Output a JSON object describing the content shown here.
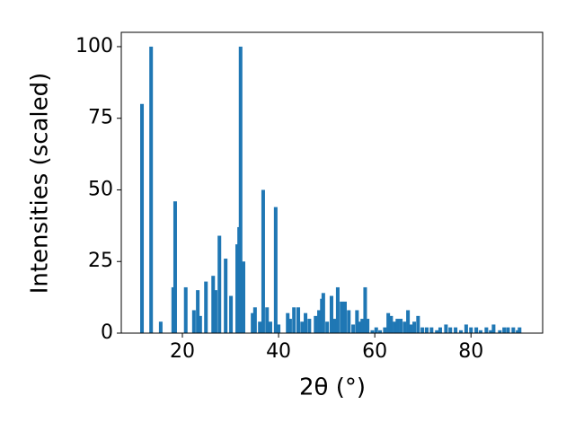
{
  "chart_data": {
    "type": "bar",
    "xlabel": "2θ (°)",
    "ylabel": "Intensities (scaled)",
    "x": [
      11.6,
      13.5,
      15.5,
      18.1,
      18.5,
      20.7,
      22.4,
      23.2,
      23.7,
      24.9,
      26.4,
      26.9,
      27.7,
      29.0,
      30.1,
      31.4,
      31.8,
      32.1,
      32.7,
      34.6,
      35.1,
      36.1,
      36.8,
      37.6,
      38.3,
      39.4,
      40.0,
      41.9,
      42.4,
      43.2,
      44.1,
      44.9,
      45.6,
      46.4,
      47.7,
      48.4,
      49.0,
      49.3,
      50.1,
      51.0,
      51.6,
      52.3,
      53.1,
      53.8,
      54.6,
      55.5,
      56.3,
      56.8,
      57.4,
      58.0,
      58.5,
      59.5,
      60.3,
      61.1,
      62.1,
      62.8,
      63.4,
      64.1,
      64.7,
      65.4,
      66.2,
      66.9,
      67.5,
      68.2,
      69.0,
      69.9,
      70.8,
      71.8,
      72.9,
      73.6,
      74.8,
      75.7,
      76.8,
      77.9,
      79.0,
      80.0,
      81.1,
      82.0,
      83.2,
      84.1,
      84.7,
      86.0,
      86.9,
      87.7,
      88.8,
      89.7,
      90.1
    ],
    "values": [
      80,
      100,
      4,
      16,
      46,
      16,
      8,
      15,
      6,
      18,
      20,
      15,
      34,
      26,
      13,
      31,
      37,
      100,
      25,
      7,
      9,
      4,
      50,
      9,
      4,
      44,
      3,
      7,
      5,
      9,
      9,
      4,
      7,
      5,
      6,
      8,
      12,
      14,
      4,
      13,
      5,
      16,
      11,
      11,
      8,
      3,
      8,
      4,
      5,
      16,
      5,
      1,
      2,
      1,
      2,
      7,
      6,
      4,
      5,
      5,
      4,
      8,
      3,
      4,
      6,
      2,
      2,
      2,
      1,
      2,
      3,
      2,
      2,
      1,
      3,
      2,
      2,
      1,
      2,
      1,
      3,
      1,
      2,
      2,
      2,
      1,
      2
    ],
    "color": "#1f77b4",
    "xlim": [
      7.3,
      94.9
    ],
    "xticks": [
      20,
      40,
      60,
      80
    ],
    "ylim": [
      0,
      105
    ],
    "yticks": [
      0,
      25,
      50,
      75,
      100
    ]
  }
}
